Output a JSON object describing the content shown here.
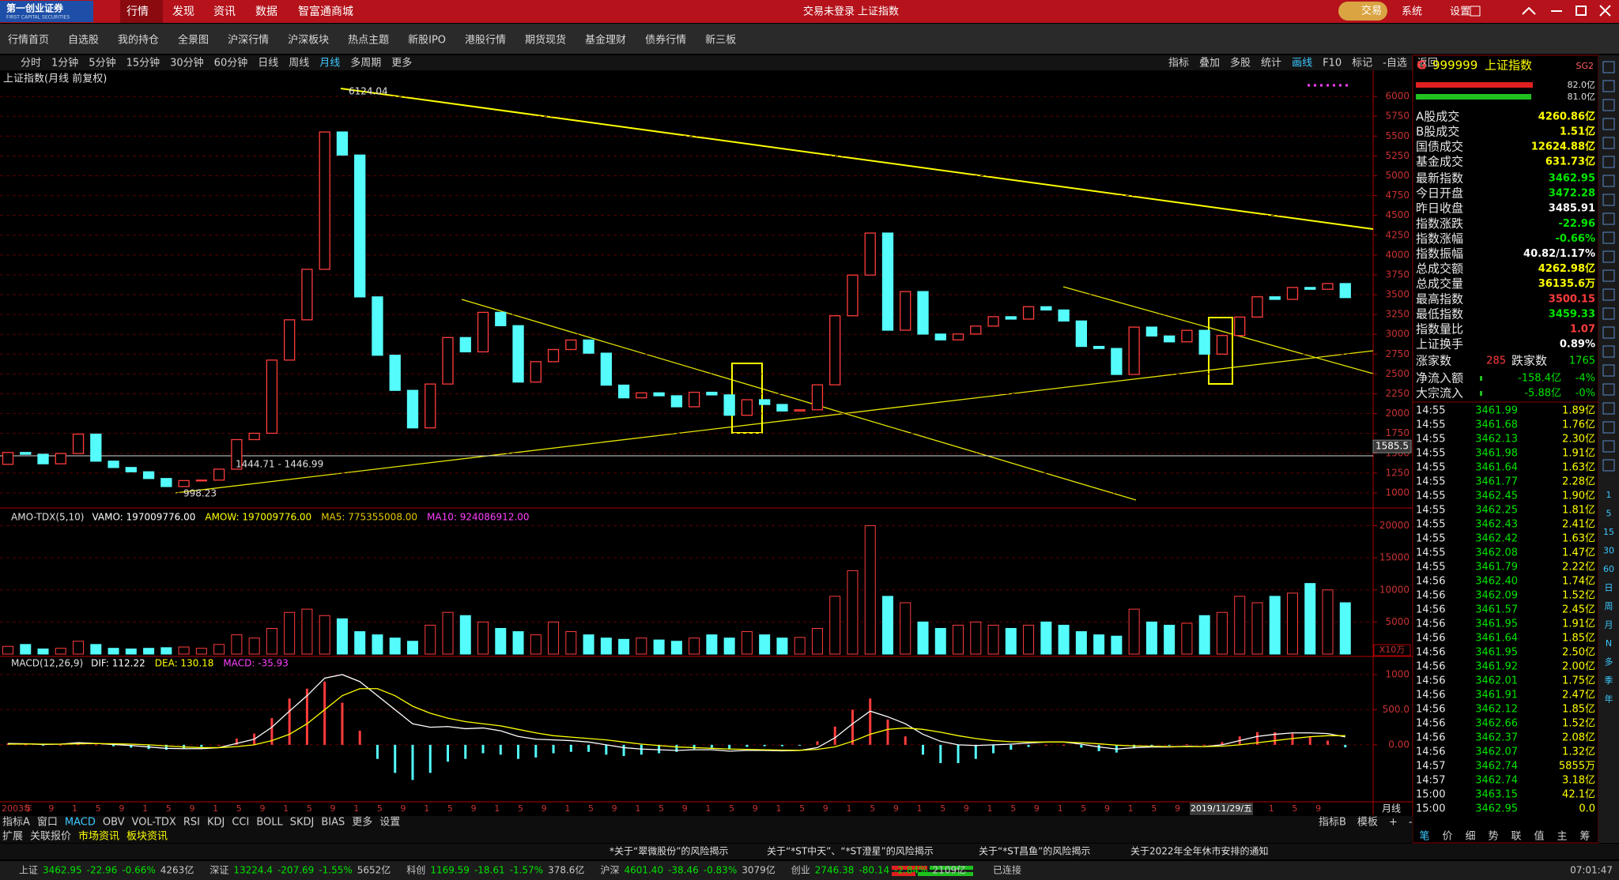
{
  "title_bar": {
    "logo": "第一创业证券",
    "logo_en": "FIRST CAPITAL SECURITIES",
    "menu": [
      "行情",
      "发现",
      "资讯",
      "数据",
      "智富通商城"
    ],
    "status": "交易未登录",
    "symbol": "上证指数",
    "trade": "交易",
    "system": "系统",
    "settings": "设置"
  },
  "nav": [
    "行情首页",
    "自选股",
    "我的持仓",
    "全景图",
    "沪深行情",
    "沪深板块",
    "热点主题",
    "新股IPO",
    "港股行情",
    "期货现货",
    "基金理财",
    "债券行情",
    "新三板"
  ],
  "toolbar": {
    "periods": [
      "分时",
      "1分钟",
      "5分钟",
      "15分钟",
      "30分钟",
      "60分钟",
      "日线",
      "周线",
      "月线",
      "多周期",
      "更多"
    ],
    "tools": [
      "指标",
      "叠加",
      "多股",
      "统计",
      "画线",
      "F10",
      "标记",
      "-自选",
      "返回"
    ]
  },
  "chart_data": [
    {
      "type": "candlestick",
      "title": "上证指数(月线 前复权)",
      "open": [
        1360,
        1510,
        1487,
        1367,
        1497,
        1741,
        1400,
        1320,
        1266,
        1181,
        1080,
        1155,
        1161,
        1299,
        1672,
        1752,
        2675,
        3183,
        3820,
        5552,
        5261,
        3472,
        2736,
        2293,
        1820,
        2373,
        2959,
        2779,
        3277,
        3109,
        2398,
        2655,
        2808,
        2928,
        2762,
        2359,
        2199,
        2262,
        2225,
        2086,
        2269,
        2236,
        1979,
        2175,
        2115,
        2033,
        2048,
        2363,
        3234,
        3747,
        4277,
        3052,
        3539,
        3003,
        2930,
        3004,
        3104,
        3222,
        3192,
        3348,
        3307,
        3168,
        2847,
        2821,
        2494,
        3091,
        2979,
        2905,
        3050,
        2750,
        2985,
        3218,
        3473,
        3441,
        3591,
        3568,
        3640
      ],
      "close": [
        1510,
        1487,
        1367,
        1497,
        1741,
        1400,
        1320,
        1266,
        1181,
        1080,
        1155,
        1161,
        1299,
        1672,
        1752,
        2675,
        3183,
        3820,
        5552,
        5261,
        3472,
        2736,
        2293,
        1820,
        2373,
        2959,
        2779,
        3277,
        3109,
        2398,
        2655,
        2808,
        2928,
        2762,
        2359,
        2199,
        2262,
        2225,
        2086,
        2269,
        2236,
        1979,
        2175,
        2115,
        2033,
        2048,
        2363,
        3234,
        3747,
        4277,
        3052,
        3539,
        3003,
        2930,
        3004,
        3104,
        3222,
        3192,
        3348,
        3307,
        3168,
        2847,
        2821,
        2494,
        3091,
        2979,
        2905,
        3050,
        2750,
        2985,
        3218,
        3473,
        3441,
        3591,
        3568,
        3640,
        3463
      ],
      "ylim": [
        840,
        6310
      ],
      "yticks": [
        1000,
        1250,
        1500,
        1750,
        2000,
        2250,
        2500,
        2750,
        3000,
        3250,
        3500,
        3750,
        4000,
        4250,
        4500,
        4750,
        5000,
        5250,
        5500,
        5750,
        6000
      ],
      "annotations": {
        "high": "6124.04",
        "low": "998.23",
        "range": "1444.71 - 1446.99"
      },
      "cursor_value": 1585.5,
      "up_color": "#ff3c3c",
      "down_color": "#54fcfc",
      "grid": true
    },
    {
      "type": "bar",
      "title": "AMO-TDX(5,10)",
      "legend": [
        {
          "name": "VAMO: 197009776.00",
          "color": "#ffffff"
        },
        {
          "name": "AMOW: 197009776.00",
          "color": "#ffff00"
        },
        {
          "name": "MA5: 775355008.00",
          "color": "#e6c800"
        },
        {
          "name": "MA10: 924086912.00",
          "color": "#ff40ff"
        }
      ],
      "values": [
        1200,
        1500,
        800,
        900,
        2000,
        1500,
        900,
        800,
        900,
        1000,
        1100,
        900,
        1500,
        3000,
        2500,
        4000,
        6500,
        7000,
        6000,
        5500,
        3500,
        3000,
        2500,
        2000,
        4500,
        6500,
        6000,
        5000,
        4000,
        3500,
        3000,
        5000,
        3500,
        3000,
        2500,
        2300,
        2500,
        2200,
        2000,
        2500,
        3000,
        2500,
        3500,
        3000,
        2500,
        2600,
        4000,
        9000,
        13000,
        20000,
        9000,
        8000,
        5000,
        4000,
        4500,
        5000,
        4500,
        4000,
        4500,
        5000,
        4500,
        3500,
        3000,
        2800,
        7000,
        5000,
        4500,
        4800,
        6000,
        6500,
        9000,
        8000,
        9000,
        9500,
        11000,
        10000,
        8000
      ],
      "ylim": [
        0,
        22400
      ],
      "yticks": [
        5000,
        10000,
        15000,
        20000
      ],
      "unit": "X10万",
      "grid": true
    },
    {
      "type": "macd",
      "title": "MACD(12,26,9)",
      "legend": [
        {
          "name": "DIF: 112.22",
          "color": "#ffffff"
        },
        {
          "name": "DEA: 130.18",
          "color": "#ffff00"
        },
        {
          "name": "MACD: -35.93",
          "color": "#ff40ff"
        }
      ],
      "dif": [
        20,
        15,
        5,
        10,
        30,
        20,
        5,
        -10,
        -30,
        -50,
        -55,
        -55,
        -40,
        20,
        80,
        250,
        480,
        700,
        950,
        1000,
        900,
        700,
        500,
        300,
        250,
        260,
        230,
        240,
        200,
        120,
        80,
        70,
        60,
        40,
        0,
        -40,
        -60,
        -70,
        -80,
        -70,
        -70,
        -90,
        -80,
        -80,
        -85,
        -80,
        -40,
        100,
        300,
        480,
        400,
        300,
        150,
        50,
        0,
        -10,
        0,
        10,
        25,
        40,
        40,
        10,
        -30,
        -60,
        -40,
        -30,
        -30,
        -20,
        -25,
        0,
        60,
        120,
        150,
        170,
        170,
        160,
        112.22
      ],
      "dea": [
        10,
        12,
        10,
        10,
        15,
        18,
        15,
        10,
        0,
        -15,
        -30,
        -40,
        -40,
        -25,
        0,
        60,
        150,
        300,
        500,
        700,
        800,
        800,
        700,
        550,
        450,
        380,
        330,
        300,
        270,
        220,
        170,
        130,
        110,
        90,
        70,
        40,
        10,
        -10,
        -30,
        -40,
        -50,
        -60,
        -65,
        -70,
        -75,
        -78,
        -65,
        -30,
        50,
        150,
        220,
        240,
        220,
        180,
        130,
        90,
        60,
        45,
        40,
        40,
        40,
        30,
        15,
        -5,
        -15,
        -20,
        -25,
        -25,
        -25,
        -20,
        0,
        30,
        60,
        90,
        115,
        130,
        130.18
      ],
      "macd": [
        20,
        6,
        -10,
        0,
        30,
        4,
        -20,
        -40,
        -60,
        -70,
        -50,
        -30,
        0,
        90,
        160,
        380,
        660,
        800,
        900,
        600,
        200,
        -200,
        -400,
        -500,
        -400,
        -240,
        -200,
        -120,
        -140,
        -200,
        -180,
        -120,
        -100,
        -100,
        -140,
        -160,
        -140,
        -120,
        -100,
        -60,
        -40,
        -60,
        -30,
        -20,
        -20,
        -4,
        50,
        260,
        500,
        660,
        360,
        120,
        -140,
        -260,
        -260,
        -200,
        -120,
        -70,
        -30,
        0,
        0,
        -40,
        -90,
        -110,
        -50,
        -20,
        -10,
        10,
        0,
        40,
        120,
        180,
        180,
        160,
        110,
        60,
        -35.93
      ],
      "ylim": [
        -800,
        1236
      ],
      "yticks": [
        {
          "value": 1000,
          "label": "1000"
        },
        {
          "value": 500,
          "label": "500.0"
        },
        {
          "value": 0,
          "label": "0.00"
        }
      ],
      "grid": true
    }
  ],
  "time_axis": {
    "labels": [
      "2003年",
      "5",
      "9",
      "1",
      "5",
      "9",
      "1",
      "5",
      "9",
      "1",
      "5",
      "9",
      "1",
      "5",
      "9",
      "1",
      "5",
      "9",
      "1",
      "5",
      "9",
      "1",
      "5",
      "9",
      "1",
      "5",
      "9",
      "1",
      "5",
      "9",
      "1",
      "5",
      "9",
      "1",
      "5",
      "9",
      "1",
      "5",
      "9",
      "1",
      "5",
      "9",
      "1",
      "5",
      "9",
      "1",
      "5",
      "9",
      "1",
      "5",
      "9",
      "1",
      "5",
      "9",
      "1",
      "5",
      "9"
    ],
    "cursor_date": "2019/11/29/五",
    "period": "月线"
  },
  "bottom_tabs": {
    "row1": [
      "指标A",
      "窗口",
      "MACD",
      "OBV",
      "VOL-TDX",
      "RSI",
      "KDJ",
      "CCI",
      "BOLL",
      "SKDJ",
      "BIAS",
      "更多",
      "设置"
    ],
    "row1_right": [
      "指标B",
      "模板",
      "+",
      "-"
    ],
    "row2": [
      "扩展",
      "关联报价",
      "市场资讯",
      "板块资讯"
    ]
  },
  "news": [
    "*关于“翠微股份”的风险揭示",
    "关于“*ST中天”、“*ST澄星”的风险揭示",
    "关于“*ST昌鱼”的风险揭示",
    "关于2022年全年休市安排的通知"
  ],
  "quote_panel": {
    "flag": "G",
    "code": "999999",
    "name": "上证指数",
    "badge": "SG2",
    "buy_bar": "82.0亿",
    "sell_bar": "81.0亿",
    "stats": [
      {
        "label": "A股成交",
        "value": "4260.86亿",
        "color": "#ffff00"
      },
      {
        "label": "B股成交",
        "value": "1.51亿",
        "color": "#ffff00"
      },
      {
        "label": "国债成交",
        "value": "12624.88亿",
        "color": "#ffff00"
      },
      {
        "label": "基金成交",
        "value": "631.73亿",
        "color": "#ffff00"
      },
      {
        "label": "最新指数",
        "value": "3462.95",
        "color": "#00e600"
      },
      {
        "label": "今日开盘",
        "value": "3472.28",
        "color": "#00e600"
      },
      {
        "label": "昨日收盘",
        "value": "3485.91",
        "color": "#ffffff"
      },
      {
        "label": "指数涨跌",
        "value": "-22.96",
        "color": "#00e600"
      },
      {
        "label": "指数涨幅",
        "value": "-0.66%",
        "color": "#00e600"
      },
      {
        "label": "指数振幅",
        "value": "40.82/1.17%",
        "color": "#ffffff"
      },
      {
        "label": "总成交额",
        "value": "4262.98亿",
        "color": "#ffff00"
      },
      {
        "label": "总成交量",
        "value": "36135.6万",
        "color": "#ffff00"
      },
      {
        "label": "最高指数",
        "value": "3500.15",
        "color": "#ff3c3c"
      },
      {
        "label": "最低指数",
        "value": "3459.33",
        "color": "#00e600"
      },
      {
        "label": "指数量比",
        "value": "1.07",
        "color": "#ff3c3c"
      },
      {
        "label": "上证换手",
        "value": "0.89%",
        "color": "#ffffff"
      }
    ],
    "breadth": {
      "up_label": "涨家数",
      "up": 285,
      "down_label": "跌家数",
      "down": 1765
    },
    "flows": [
      {
        "label": "净流入额",
        "value": "-158.4亿",
        "pct": "-4%"
      },
      {
        "label": "大宗流入",
        "value": "-5.88亿",
        "pct": "-0%"
      }
    ],
    "ticks": [
      [
        "14:55",
        "3461.99",
        "1.89亿"
      ],
      [
        "14:55",
        "3461.68",
        "1.76亿"
      ],
      [
        "14:55",
        "3462.13",
        "2.30亿"
      ],
      [
        "14:55",
        "3461.98",
        "1.91亿"
      ],
      [
        "14:55",
        "3461.64",
        "1.63亿"
      ],
      [
        "14:55",
        "3461.77",
        "2.28亿"
      ],
      [
        "14:55",
        "3462.45",
        "1.90亿"
      ],
      [
        "14:55",
        "3462.25",
        "1.81亿"
      ],
      [
        "14:55",
        "3462.43",
        "2.41亿"
      ],
      [
        "14:55",
        "3462.42",
        "1.63亿"
      ],
      [
        "14:55",
        "3462.08",
        "1.47亿"
      ],
      [
        "14:55",
        "3461.79",
        "2.22亿"
      ],
      [
        "14:56",
        "3462.40",
        "1.74亿"
      ],
      [
        "14:56",
        "3462.09",
        "1.52亿"
      ],
      [
        "14:56",
        "3461.57",
        "2.45亿"
      ],
      [
        "14:56",
        "3461.95",
        "1.91亿"
      ],
      [
        "14:56",
        "3461.64",
        "1.85亿"
      ],
      [
        "14:56",
        "3461.95",
        "2.50亿"
      ],
      [
        "14:56",
        "3461.92",
        "2.00亿"
      ],
      [
        "14:56",
        "3462.01",
        "1.75亿"
      ],
      [
        "14:56",
        "3461.91",
        "2.47亿"
      ],
      [
        "14:56",
        "3462.12",
        "1.85亿"
      ],
      [
        "14:56",
        "3462.66",
        "1.52亿"
      ],
      [
        "14:56",
        "3462.37",
        "2.08亿"
      ],
      [
        "14:56",
        "3462.07",
        "1.32亿"
      ],
      [
        "14:57",
        "3462.74",
        "5855万"
      ],
      [
        "14:57",
        "3462.74",
        "3.18亿"
      ],
      [
        "15:00",
        "3463.15",
        "42.1亿"
      ],
      [
        "15:00",
        "3462.95",
        "0.0"
      ]
    ],
    "tabs": [
      "笔",
      "价",
      "细",
      "势",
      "联",
      "值",
      "主",
      "筹"
    ]
  },
  "side_icons": [
    "1",
    "5",
    "15",
    "30",
    "60",
    "日",
    "周",
    "月",
    "N",
    "多",
    "季",
    "年"
  ],
  "status_bar": {
    "indices": [
      {
        "name": "上证",
        "value": "3462.95",
        "change": "-22.96",
        "pct": "-0.66%",
        "amount": "4263亿"
      },
      {
        "name": "深证",
        "value": "13224.4",
        "change": "-207.69",
        "pct": "-1.55%",
        "amount": "5652亿"
      },
      {
        "name": "科创",
        "value": "1169.59",
        "change": "-18.61",
        "pct": "-1.57%",
        "amount": "378.6亿"
      },
      {
        "name": "沪深",
        "value": "4601.40",
        "change": "-38.46",
        "pct": "-0.83%",
        "amount": "3079亿"
      },
      {
        "name": "创业",
        "value": "2746.38",
        "change": "-80.14",
        "pct": "-2.84%",
        "amount": "2109亿"
      }
    ],
    "connection": "已连接",
    "clock": "07:01:47"
  }
}
